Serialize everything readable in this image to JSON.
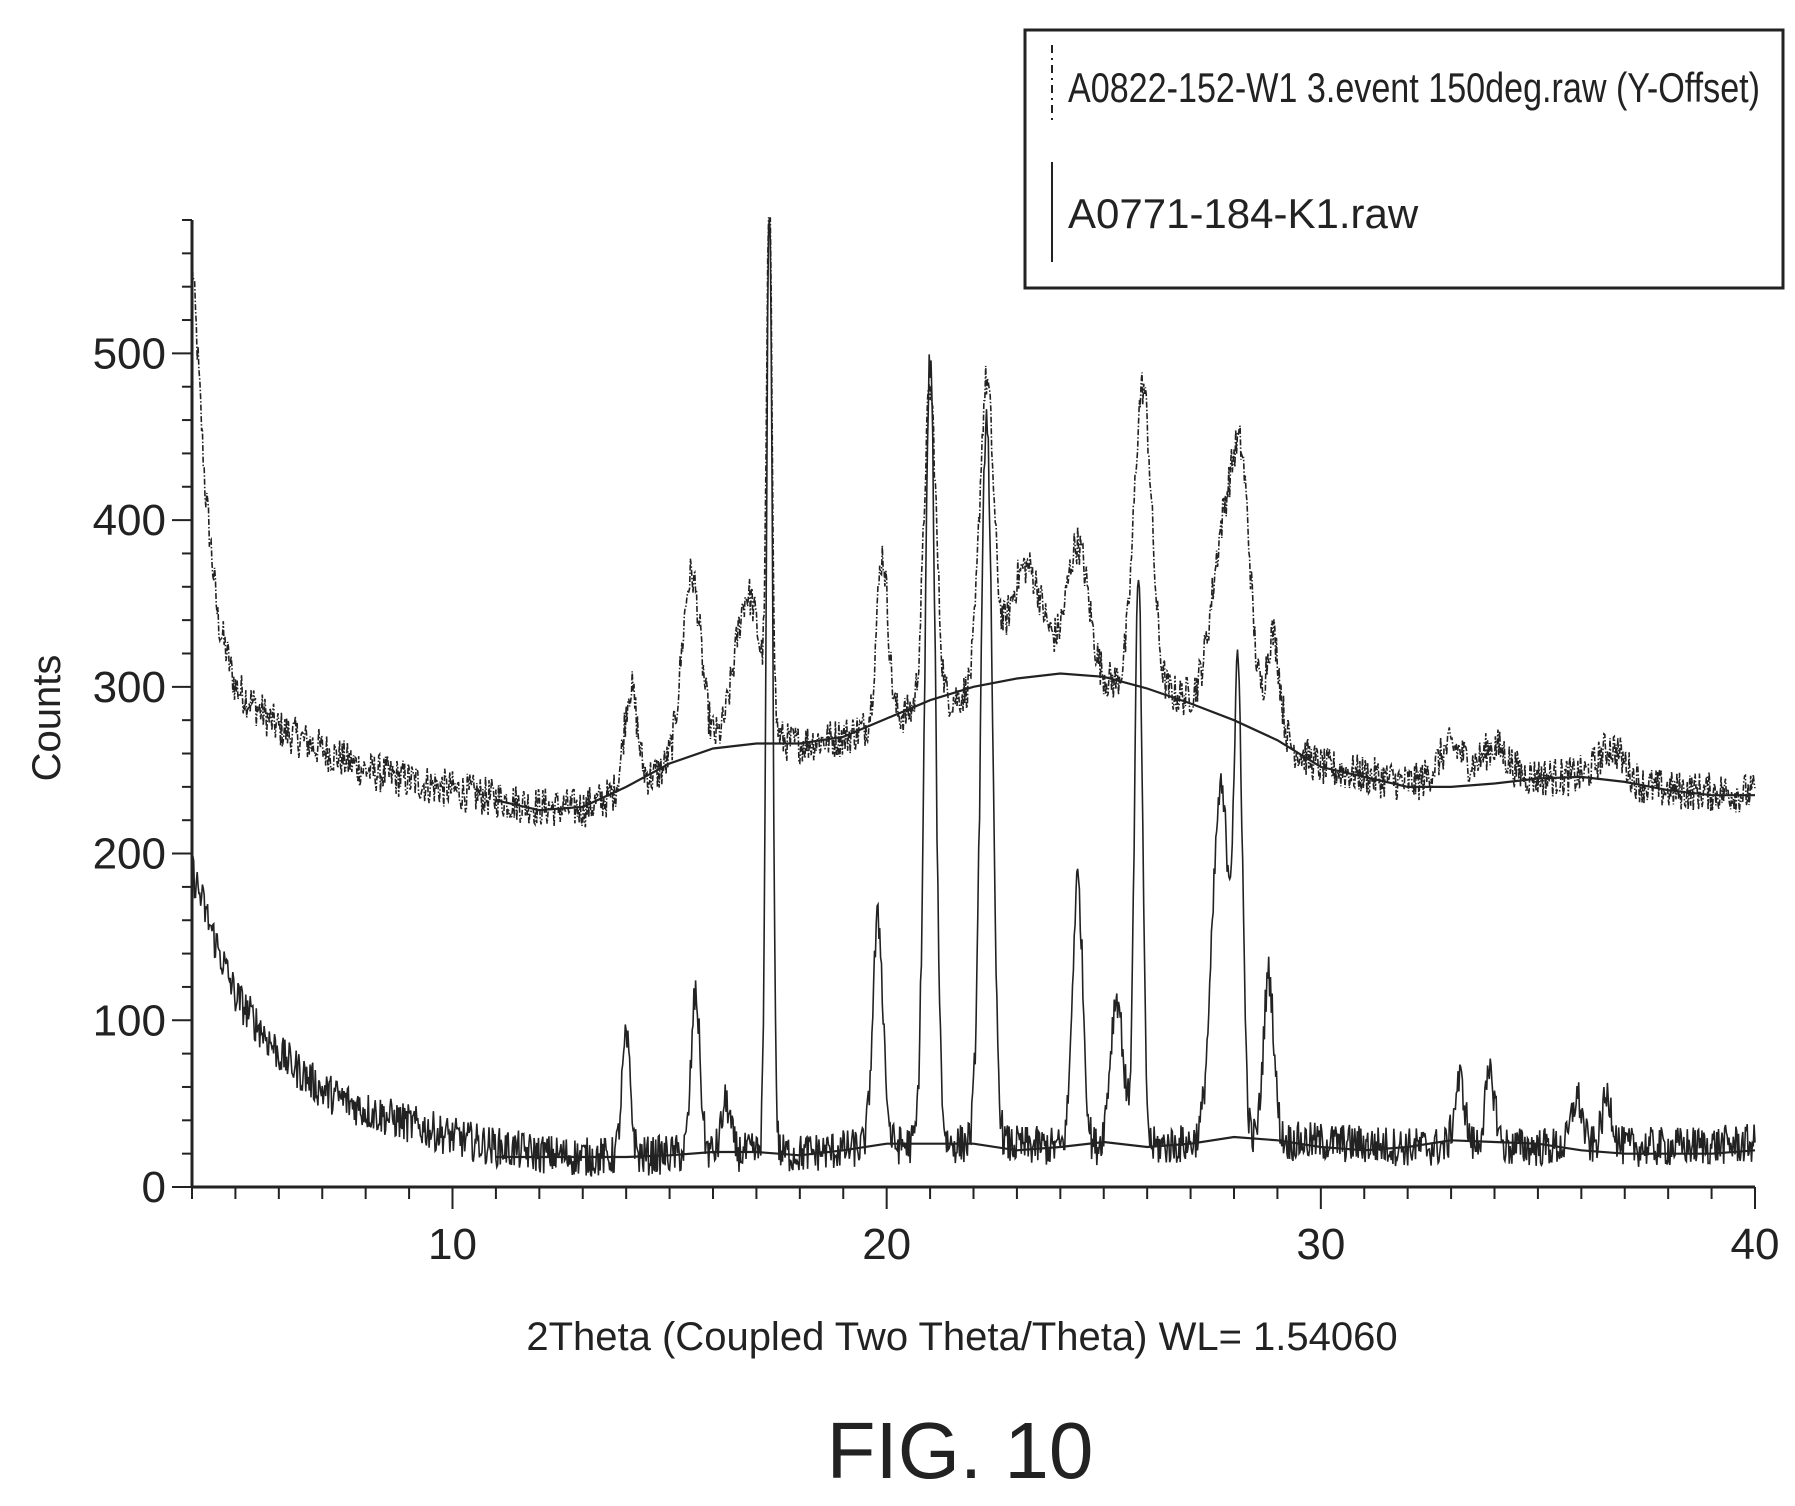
{
  "chart_data": {
    "type": "line",
    "title": "",
    "xlabel": "2Theta (Coupled Two Theta/Theta) WL= 1.54060",
    "ylabel": "Counts",
    "xlim": [
      4,
      40
    ],
    "ylim": [
      0,
      580
    ],
    "x_ticks": [
      10,
      20,
      30,
      40
    ],
    "y_ticks": [
      0,
      100,
      200,
      300,
      400,
      500
    ],
    "grid": false,
    "legend_position": "top-right",
    "caption": "FIG. 10",
    "colors": {
      "line": "#222222",
      "background": "#ffffff"
    },
    "series": [
      {
        "name": "A0822-152-W1 3.event 150deg.raw (Y-Offset)",
        "style": "dash-dot",
        "baseline": [
          [
            4,
            560
          ],
          [
            4.3,
            420
          ],
          [
            4.6,
            340
          ],
          [
            5,
            300
          ],
          [
            6,
            275
          ],
          [
            8,
            250
          ],
          [
            10,
            238
          ],
          [
            12,
            228
          ],
          [
            13,
            227
          ],
          [
            14,
            238
          ],
          [
            15,
            252
          ],
          [
            16,
            262
          ],
          [
            17,
            266
          ],
          [
            18,
            266
          ],
          [
            19,
            270
          ],
          [
            20,
            280
          ],
          [
            22,
            297
          ],
          [
            24,
            306
          ],
          [
            26,
            300
          ],
          [
            28,
            285
          ],
          [
            29,
            270
          ],
          [
            30,
            252
          ],
          [
            32,
            242
          ],
          [
            34,
            246
          ],
          [
            36,
            246
          ],
          [
            38,
            238
          ],
          [
            40,
            236
          ]
        ],
        "peaks": [
          {
            "x": 14.1,
            "height": 60,
            "width": 0.15
          },
          {
            "x": 15.5,
            "height": 110,
            "width": 0.22
          },
          {
            "x": 16.8,
            "height": 90,
            "width": 0.3
          },
          {
            "x": 17.3,
            "height": 320,
            "width": 0.06
          },
          {
            "x": 19.9,
            "height": 100,
            "width": 0.13
          },
          {
            "x": 21.0,
            "height": 190,
            "width": 0.14
          },
          {
            "x": 22.3,
            "height": 180,
            "width": 0.16
          },
          {
            "x": 23.2,
            "height": 70,
            "width": 0.4
          },
          {
            "x": 24.4,
            "height": 80,
            "width": 0.25
          },
          {
            "x": 25.9,
            "height": 180,
            "width": 0.2
          },
          {
            "x": 27.8,
            "height": 110,
            "width": 0.3
          },
          {
            "x": 28.2,
            "height": 110,
            "width": 0.2
          },
          {
            "x": 28.9,
            "height": 60,
            "width": 0.15
          },
          {
            "x": 33.0,
            "height": 20,
            "width": 0.3
          },
          {
            "x": 34.0,
            "height": 18,
            "width": 0.3
          },
          {
            "x": 36.7,
            "height": 20,
            "width": 0.3
          }
        ],
        "noise": 12
      },
      {
        "name": "A0771-184-K1.raw",
        "style": "solid",
        "baseline": [
          [
            4,
            190
          ],
          [
            4.5,
            150
          ],
          [
            5,
            115
          ],
          [
            6,
            80
          ],
          [
            7,
            58
          ],
          [
            8,
            46
          ],
          [
            9,
            38
          ],
          [
            10,
            30
          ],
          [
            11,
            24
          ],
          [
            12,
            20
          ],
          [
            13,
            18
          ],
          [
            14,
            18
          ],
          [
            16,
            21
          ],
          [
            18,
            20
          ],
          [
            20,
            25
          ],
          [
            22,
            26
          ],
          [
            24,
            24
          ],
          [
            26,
            24
          ],
          [
            28,
            28
          ],
          [
            30,
            27
          ],
          [
            32,
            24
          ],
          [
            34,
            24
          ],
          [
            36,
            24
          ],
          [
            38,
            24
          ],
          [
            40,
            26
          ]
        ],
        "peaks": [
          {
            "x": 14.0,
            "height": 70,
            "width": 0.1
          },
          {
            "x": 15.6,
            "height": 95,
            "width": 0.1
          },
          {
            "x": 16.3,
            "height": 30,
            "width": 0.1
          },
          {
            "x": 17.3,
            "height": 580,
            "width": 0.07
          },
          {
            "x": 19.8,
            "height": 135,
            "width": 0.12
          },
          {
            "x": 21.0,
            "height": 470,
            "width": 0.12
          },
          {
            "x": 22.3,
            "height": 440,
            "width": 0.13
          },
          {
            "x": 24.4,
            "height": 160,
            "width": 0.12
          },
          {
            "x": 25.3,
            "height": 90,
            "width": 0.15
          },
          {
            "x": 25.8,
            "height": 340,
            "width": 0.09
          },
          {
            "x": 27.7,
            "height": 210,
            "width": 0.2
          },
          {
            "x": 28.1,
            "height": 255,
            "width": 0.1
          },
          {
            "x": 28.8,
            "height": 100,
            "width": 0.12
          },
          {
            "x": 33.2,
            "height": 40,
            "width": 0.12
          },
          {
            "x": 33.9,
            "height": 42,
            "width": 0.12
          },
          {
            "x": 35.9,
            "height": 30,
            "width": 0.12
          },
          {
            "x": 36.6,
            "height": 30,
            "width": 0.12
          }
        ],
        "noise": 12
      }
    ],
    "background_curves": [
      {
        "name": "fit-upper",
        "points": [
          [
            11,
            232
          ],
          [
            12,
            226
          ],
          [
            13,
            228
          ],
          [
            14,
            240
          ],
          [
            15,
            254
          ],
          [
            16,
            263
          ],
          [
            17,
            266
          ],
          [
            18,
            266
          ],
          [
            19,
            270
          ],
          [
            20,
            281
          ],
          [
            21,
            292
          ],
          [
            22,
            300
          ],
          [
            23,
            305
          ],
          [
            24,
            308
          ],
          [
            25,
            306
          ],
          [
            26,
            299
          ],
          [
            27,
            290
          ],
          [
            28,
            280
          ],
          [
            29,
            268
          ],
          [
            30,
            252
          ],
          [
            31,
            246
          ],
          [
            32,
            240
          ],
          [
            33,
            240
          ],
          [
            34,
            242
          ],
          [
            35,
            245
          ],
          [
            36,
            246
          ],
          [
            37,
            243
          ],
          [
            38,
            238
          ],
          [
            39,
            235
          ],
          [
            40,
            235
          ]
        ]
      },
      {
        "name": "fit-lower",
        "points": [
          [
            11,
            18
          ],
          [
            12,
            18
          ],
          [
            13,
            18
          ],
          [
            14,
            18
          ],
          [
            15,
            19
          ],
          [
            16,
            21
          ],
          [
            17,
            21
          ],
          [
            18,
            19
          ],
          [
            19,
            22
          ],
          [
            20,
            26
          ],
          [
            21,
            26
          ],
          [
            22,
            26
          ],
          [
            23,
            22
          ],
          [
            24,
            24
          ],
          [
            25,
            27
          ],
          [
            26,
            24
          ],
          [
            27,
            26
          ],
          [
            28,
            30
          ],
          [
            29,
            28
          ],
          [
            30,
            24
          ],
          [
            31,
            22
          ],
          [
            32,
            24
          ],
          [
            33,
            28
          ],
          [
            34,
            27
          ],
          [
            35,
            26
          ],
          [
            36,
            22
          ],
          [
            37,
            20
          ],
          [
            38,
            20
          ],
          [
            39,
            20
          ],
          [
            40,
            22
          ]
        ]
      }
    ]
  }
}
